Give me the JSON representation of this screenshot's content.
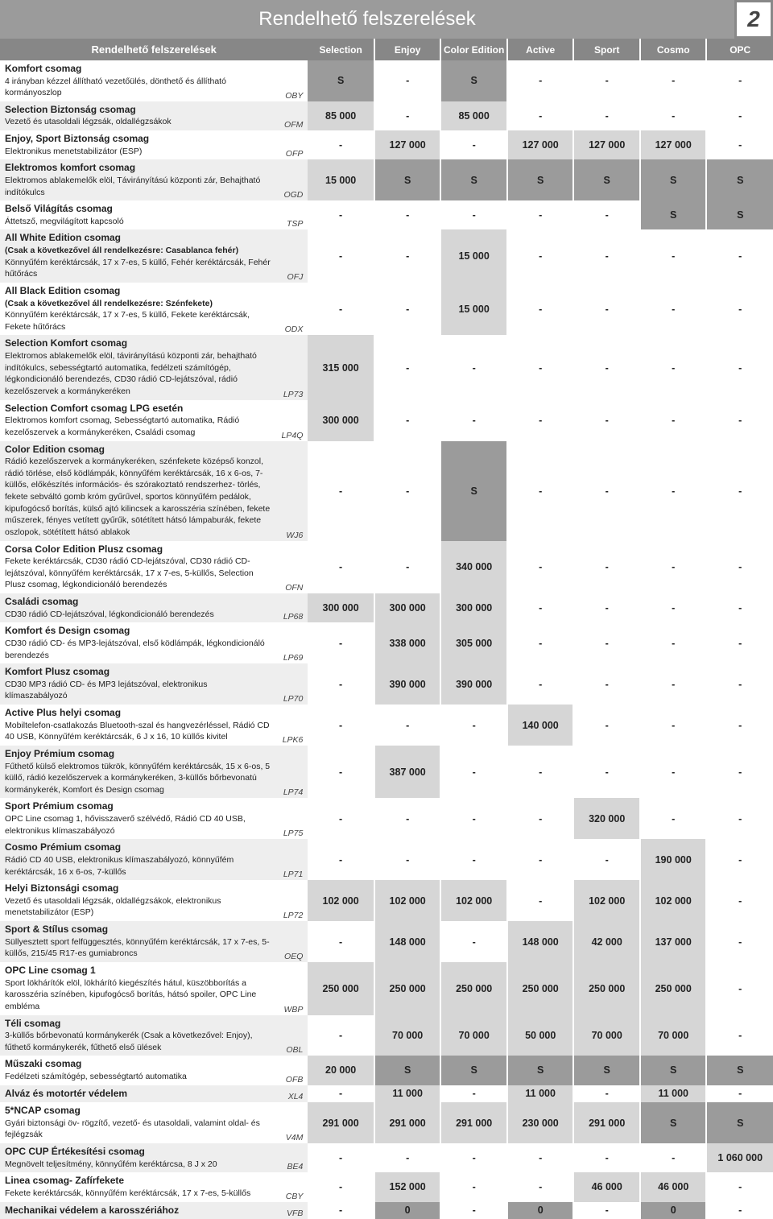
{
  "header": {
    "title": "Rendelhető felszerelések",
    "page_number": "2"
  },
  "columns": [
    "Selection",
    "Enjoy",
    "Color Edition",
    "Active",
    "Sport",
    "Cosmo",
    "OPC"
  ],
  "table_header": "Rendelhető felszerelések",
  "rows": [
    {
      "title": "Komfort csomag",
      "desc": "4 irányban kézzel állítható vezetőülés, dönthető és állítható kormányoszlop",
      "code": "OBY",
      "cells": [
        {
          "t": "S",
          "c": "dark"
        },
        {
          "t": "-",
          "c": "white"
        },
        {
          "t": "S",
          "c": "dark"
        },
        {
          "t": "-",
          "c": "white"
        },
        {
          "t": "-",
          "c": "white"
        },
        {
          "t": "-",
          "c": "white"
        },
        {
          "t": "-",
          "c": "white"
        }
      ]
    },
    {
      "title": "Selection Biztonság csomag",
      "desc": "Vezető és utasoldali légzsák, oldallégzsákok",
      "code": "OFM",
      "cells": [
        {
          "t": "85 000",
          "c": "light"
        },
        {
          "t": "-",
          "c": "white"
        },
        {
          "t": "85 000",
          "c": "light"
        },
        {
          "t": "-",
          "c": "white"
        },
        {
          "t": "-",
          "c": "white"
        },
        {
          "t": "-",
          "c": "white"
        },
        {
          "t": "-",
          "c": "white"
        }
      ]
    },
    {
      "title": "Enjoy, Sport Biztonság csomag",
      "desc": "Elektronikus menetstabilizátor (ESP)",
      "code": "OFP",
      "cells": [
        {
          "t": "-",
          "c": "white"
        },
        {
          "t": "127 000",
          "c": "light"
        },
        {
          "t": "-",
          "c": "white"
        },
        {
          "t": "127 000",
          "c": "light"
        },
        {
          "t": "127 000",
          "c": "light"
        },
        {
          "t": "127 000",
          "c": "light"
        },
        {
          "t": "-",
          "c": "white"
        }
      ]
    },
    {
      "title": "Elektromos komfort csomag",
      "desc": "Elektromos ablakemelők elöl, Távirányítású központi zár, Behajtható indítókulcs",
      "code": "OGD",
      "cells": [
        {
          "t": "15 000",
          "c": "light"
        },
        {
          "t": "S",
          "c": "dark"
        },
        {
          "t": "S",
          "c": "dark"
        },
        {
          "t": "S",
          "c": "dark"
        },
        {
          "t": "S",
          "c": "dark"
        },
        {
          "t": "S",
          "c": "dark"
        },
        {
          "t": "S",
          "c": "dark"
        }
      ]
    },
    {
      "title": "Belső Világítás csomag",
      "desc": "Áttetsző, megvilágított kapcsoló",
      "code": "TSP",
      "cells": [
        {
          "t": "-",
          "c": "white"
        },
        {
          "t": "-",
          "c": "white"
        },
        {
          "t": "-",
          "c": "white"
        },
        {
          "t": "-",
          "c": "white"
        },
        {
          "t": "-",
          "c": "white"
        },
        {
          "t": "S",
          "c": "dark"
        },
        {
          "t": "S",
          "c": "dark"
        }
      ]
    },
    {
      "title": "All White Edition csomag",
      "desc": "<b>(Csak a következővel áll rendelkezésre: Casablanca fehér)</b><br>Könnyűfém keréktárcsák, 17 x 7-es, 5 küllő, Fehér keréktárcsák, Fehér hűtőrács",
      "code": "OFJ",
      "cells": [
        {
          "t": "-",
          "c": "white"
        },
        {
          "t": "-",
          "c": "white"
        },
        {
          "t": "15 000",
          "c": "light"
        },
        {
          "t": "-",
          "c": "white"
        },
        {
          "t": "-",
          "c": "white"
        },
        {
          "t": "-",
          "c": "white"
        },
        {
          "t": "-",
          "c": "white"
        }
      ]
    },
    {
      "title": "All Black Edition csomag",
      "desc": "<b>(Csak a következővel áll rendelkezésre: Szénfekete)</b><br>Könnyűfém keréktárcsák, 17 x 7-es, 5 küllő, Fekete keréktárcsák, Fekete hűtőrács",
      "code": "ODX",
      "cells": [
        {
          "t": "-",
          "c": "white"
        },
        {
          "t": "-",
          "c": "white"
        },
        {
          "t": "15 000",
          "c": "light"
        },
        {
          "t": "-",
          "c": "white"
        },
        {
          "t": "-",
          "c": "white"
        },
        {
          "t": "-",
          "c": "white"
        },
        {
          "t": "-",
          "c": "white"
        }
      ]
    },
    {
      "title": "Selection Komfort csomag",
      "desc": "Elektromos ablakemelők elöl, távirányítású központi zár, behajtható indítókulcs, sebességtartó automatika, fedélzeti számítógép, légkondicionáló berendezés, CD30 rádió CD-lejátszóval, rádió kezelőszervek a kormánykeréken",
      "code": "LP73",
      "cells": [
        {
          "t": "315 000",
          "c": "light"
        },
        {
          "t": "-",
          "c": "white"
        },
        {
          "t": "-",
          "c": "white"
        },
        {
          "t": "-",
          "c": "white"
        },
        {
          "t": "-",
          "c": "white"
        },
        {
          "t": "-",
          "c": "white"
        },
        {
          "t": "-",
          "c": "white"
        }
      ]
    },
    {
      "title": "Selection Comfort csomag LPG esetén",
      "desc": "Elektromos komfort csomag, Sebességtartó automatika, Rádió kezelőszervek a kormánykeréken, Családi csomag",
      "code": "LP4Q",
      "cells": [
        {
          "t": "300 000",
          "c": "light"
        },
        {
          "t": "-",
          "c": "white"
        },
        {
          "t": "-",
          "c": "white"
        },
        {
          "t": "-",
          "c": "white"
        },
        {
          "t": "-",
          "c": "white"
        },
        {
          "t": "-",
          "c": "white"
        },
        {
          "t": "-",
          "c": "white"
        }
      ]
    },
    {
      "title": "Color Edition csomag",
      "desc": "Rádió kezelőszervek a kormánykeréken, szénfekete középső konzol, rádió törlése, első ködlámpák, könnyűfém keréktárcsák, 16 x 6-os, 7-küllős, előkészítés információs- és szórakoztató rendszerhez- törlés, fekete sebváltó gomb króm gyűrűvel, sportos könnyűfém pedálok, kipufogócső borítás, külső ajtó kilincsek a karosszéria színében, fekete műszerek, fényes vetített gyűrűk, sötétített hátsó lámpaburák, fekete oszlopok, sötétített hátsó ablakok",
      "code": "WJ6",
      "cells": [
        {
          "t": "-",
          "c": "white"
        },
        {
          "t": "-",
          "c": "white"
        },
        {
          "t": "S",
          "c": "dark"
        },
        {
          "t": "-",
          "c": "white"
        },
        {
          "t": "-",
          "c": "white"
        },
        {
          "t": "-",
          "c": "white"
        },
        {
          "t": "-",
          "c": "white"
        }
      ]
    },
    {
      "title": "Corsa Color Edition Plusz csomag",
      "desc": "Fekete keréktárcsák, CD30 rádió CD-lejátszóval, CD30 rádió CD-lejátszóval, könnyűfém keréktárcsák, 17 x 7-es, 5-küllős, Selection Plusz csomag, légkondicionáló berendezés",
      "code": "OFN",
      "cells": [
        {
          "t": "-",
          "c": "white"
        },
        {
          "t": "-",
          "c": "white"
        },
        {
          "t": "340 000",
          "c": "light"
        },
        {
          "t": "-",
          "c": "white"
        },
        {
          "t": "-",
          "c": "white"
        },
        {
          "t": "-",
          "c": "white"
        },
        {
          "t": "-",
          "c": "white"
        }
      ]
    },
    {
      "title": "Családi csomag",
      "desc": "CD30 rádió CD-lejátszóval, légkondicionáló berendezés",
      "code": "LP68",
      "cells": [
        {
          "t": "300 000",
          "c": "light"
        },
        {
          "t": "300 000",
          "c": "light"
        },
        {
          "t": "300 000",
          "c": "light"
        },
        {
          "t": "-",
          "c": "white"
        },
        {
          "t": "-",
          "c": "white"
        },
        {
          "t": "-",
          "c": "white"
        },
        {
          "t": "-",
          "c": "white"
        }
      ]
    },
    {
      "title": "Komfort és Design csomag",
      "desc": "CD30 rádió CD- és MP3-lejátszóval, első ködlámpák, légkondicionáló berendezés",
      "code": "LP69",
      "cells": [
        {
          "t": "-",
          "c": "white"
        },
        {
          "t": "338 000",
          "c": "light"
        },
        {
          "t": "305 000",
          "c": "light"
        },
        {
          "t": "-",
          "c": "white"
        },
        {
          "t": "-",
          "c": "white"
        },
        {
          "t": "-",
          "c": "white"
        },
        {
          "t": "-",
          "c": "white"
        }
      ]
    },
    {
      "title": "Komfort Plusz csomag",
      "desc": "CD30 MP3 rádió CD- és MP3 lejátszóval, elektronikus klímaszabályozó",
      "code": "LP70",
      "cells": [
        {
          "t": "-",
          "c": "white"
        },
        {
          "t": "390 000",
          "c": "light"
        },
        {
          "t": "390 000",
          "c": "light"
        },
        {
          "t": "-",
          "c": "white"
        },
        {
          "t": "-",
          "c": "white"
        },
        {
          "t": "-",
          "c": "white"
        },
        {
          "t": "-",
          "c": "white"
        }
      ]
    },
    {
      "title": "Active Plus helyi csomag",
      "desc": "Mobiltelefon-csatlakozás Bluetooth-szal és hangvezérléssel, Rádió CD 40 USB, Könnyűfém keréktárcsák, 6 J x 16, 10 küllős kivitel",
      "code": "LPK6",
      "cells": [
        {
          "t": "-",
          "c": "white"
        },
        {
          "t": "-",
          "c": "white"
        },
        {
          "t": "-",
          "c": "white"
        },
        {
          "t": "140 000",
          "c": "light"
        },
        {
          "t": "-",
          "c": "white"
        },
        {
          "t": "-",
          "c": "white"
        },
        {
          "t": "-",
          "c": "white"
        }
      ]
    },
    {
      "title": "Enjoy Prémium csomag",
      "desc": "Fűthető külső elektromos tükrök, könnyűfém keréktárcsák, 15 x 6-os, 5 küllő, rádió kezelőszervek a kormánykeréken, 3-küllős bőrbevonatú kormánykerék, Komfort és Design csomag",
      "code": "LP74",
      "cells": [
        {
          "t": "-",
          "c": "white"
        },
        {
          "t": "387 000",
          "c": "light"
        },
        {
          "t": "-",
          "c": "white"
        },
        {
          "t": "-",
          "c": "white"
        },
        {
          "t": "-",
          "c": "white"
        },
        {
          "t": "-",
          "c": "white"
        },
        {
          "t": "-",
          "c": "white"
        }
      ]
    },
    {
      "title": "Sport Prémium csomag",
      "desc": "OPC Line csomag 1, hővisszaverő szélvédő, Rádió CD 40 USB, elektronikus klímaszabályozó",
      "code": "LP75",
      "cells": [
        {
          "t": "-",
          "c": "white"
        },
        {
          "t": "-",
          "c": "white"
        },
        {
          "t": "-",
          "c": "white"
        },
        {
          "t": "-",
          "c": "white"
        },
        {
          "t": "320 000",
          "c": "light"
        },
        {
          "t": "-",
          "c": "white"
        },
        {
          "t": "-",
          "c": "white"
        }
      ]
    },
    {
      "title": "Cosmo Prémium csomag",
      "desc": "Rádió CD 40 USB, elektronikus klímaszabályozó, könnyűfém keréktárcsák, 16 x 6-os, 7-küllős",
      "code": "LP71",
      "cells": [
        {
          "t": "-",
          "c": "white"
        },
        {
          "t": "-",
          "c": "white"
        },
        {
          "t": "-",
          "c": "white"
        },
        {
          "t": "-",
          "c": "white"
        },
        {
          "t": "-",
          "c": "white"
        },
        {
          "t": "190 000",
          "c": "light"
        },
        {
          "t": "-",
          "c": "white"
        }
      ]
    },
    {
      "title": "Helyi Biztonsági csomag",
      "desc": "Vezető és utasoldali légzsák, oldallégzsákok, elektronikus menetstabilizátor (ESP)",
      "code": "LP72",
      "cells": [
        {
          "t": "102 000",
          "c": "light"
        },
        {
          "t": "102 000",
          "c": "light"
        },
        {
          "t": "102 000",
          "c": "light"
        },
        {
          "t": "-",
          "c": "white"
        },
        {
          "t": "102 000",
          "c": "light"
        },
        {
          "t": "102 000",
          "c": "light"
        },
        {
          "t": "-",
          "c": "white"
        }
      ]
    },
    {
      "title": "Sport & Stílus csomag",
      "desc": "Süllyesztett sport felfüggesztés, könnyűfém keréktárcsák, 17 x 7-es, 5-küllős, 215/45 R17-es gumiabroncs",
      "code": "OEQ",
      "cells": [
        {
          "t": "-",
          "c": "white"
        },
        {
          "t": "148 000",
          "c": "light"
        },
        {
          "t": "-",
          "c": "white"
        },
        {
          "t": "148 000",
          "c": "light"
        },
        {
          "t": "42 000",
          "c": "light"
        },
        {
          "t": "137 000",
          "c": "light"
        },
        {
          "t": "-",
          "c": "white"
        }
      ]
    },
    {
      "title": "OPC Line csomag 1",
      "desc": "Sport lökhárítók elöl, lökhárító kiegészítés hátul, küszöbborítás a karosszéria színében, kipufogócső borítás, hátsó spoiler, OPC Line embléma",
      "code": "WBP",
      "cells": [
        {
          "t": "250 000",
          "c": "light"
        },
        {
          "t": "250 000",
          "c": "light"
        },
        {
          "t": "250 000",
          "c": "light"
        },
        {
          "t": "250 000",
          "c": "light"
        },
        {
          "t": "250 000",
          "c": "light"
        },
        {
          "t": "250 000",
          "c": "light"
        },
        {
          "t": "-",
          "c": "white"
        }
      ]
    },
    {
      "title": "Téli csomag",
      "desc": "3-küllős bőrbevonatú kormánykerék (Csak a következővel: Enjoy), fűthető kormánykerék, fűthető első ülések",
      "code": "OBL",
      "cells": [
        {
          "t": "-",
          "c": "white"
        },
        {
          "t": "70 000",
          "c": "light"
        },
        {
          "t": "70 000",
          "c": "light"
        },
        {
          "t": "50 000",
          "c": "light"
        },
        {
          "t": "70 000",
          "c": "light"
        },
        {
          "t": "70 000",
          "c": "light"
        },
        {
          "t": "-",
          "c": "white"
        }
      ]
    },
    {
      "title": "Műszaki csomag",
      "desc": "Fedélzeti számítógép, sebességtartó automatika",
      "code": "OFB",
      "cells": [
        {
          "t": "20 000",
          "c": "light"
        },
        {
          "t": "S",
          "c": "dark"
        },
        {
          "t": "S",
          "c": "dark"
        },
        {
          "t": "S",
          "c": "dark"
        },
        {
          "t": "S",
          "c": "dark"
        },
        {
          "t": "S",
          "c": "dark"
        },
        {
          "t": "S",
          "c": "dark"
        }
      ]
    },
    {
      "title": "Alváz és motortér védelem",
      "desc": "",
      "code": "XL4",
      "cells": [
        {
          "t": "-",
          "c": "white"
        },
        {
          "t": "11 000",
          "c": "light"
        },
        {
          "t": "-",
          "c": "white"
        },
        {
          "t": "11 000",
          "c": "light"
        },
        {
          "t": "-",
          "c": "white"
        },
        {
          "t": "11 000",
          "c": "light"
        },
        {
          "t": "-",
          "c": "white"
        }
      ]
    },
    {
      "title": "5*NCAP csomag",
      "desc": "Gyári biztonsági öv- rögzítő, vezető- és utasoldali, valamint oldal- és fejlégzsák",
      "code": "V4M",
      "cells": [
        {
          "t": "291 000",
          "c": "light"
        },
        {
          "t": "291 000",
          "c": "light"
        },
        {
          "t": "291 000",
          "c": "light"
        },
        {
          "t": "230 000",
          "c": "light"
        },
        {
          "t": "291 000",
          "c": "light"
        },
        {
          "t": "S",
          "c": "dark"
        },
        {
          "t": "S",
          "c": "dark"
        }
      ]
    },
    {
      "title": "OPC CUP Értékesítési csomag",
      "desc": "Megnövelt teljesítmény, könnyűfém keréktárcsa, 8 J x 20",
      "code": "BE4",
      "cells": [
        {
          "t": "-",
          "c": "white"
        },
        {
          "t": "-",
          "c": "white"
        },
        {
          "t": "-",
          "c": "white"
        },
        {
          "t": "-",
          "c": "white"
        },
        {
          "t": "-",
          "c": "white"
        },
        {
          "t": "-",
          "c": "white"
        },
        {
          "t": "1 060 000",
          "c": "light"
        }
      ]
    },
    {
      "title": "Linea csomag- Zafírfekete",
      "desc": "Fekete keréktárcsák, könnyűfém keréktárcsák, 17 x 7-es, 5-küllős",
      "code": "CBY",
      "cells": [
        {
          "t": "-",
          "c": "white"
        },
        {
          "t": "152 000",
          "c": "light"
        },
        {
          "t": "-",
          "c": "white"
        },
        {
          "t": "-",
          "c": "white"
        },
        {
          "t": "46 000",
          "c": "light"
        },
        {
          "t": "46 000",
          "c": "light"
        },
        {
          "t": "-",
          "c": "white"
        }
      ]
    },
    {
      "title": "Mechanikai védelem a karosszériához",
      "desc": "",
      "code": "VFB",
      "cells": [
        {
          "t": "-",
          "c": "white"
        },
        {
          "t": "0",
          "c": "dark"
        },
        {
          "t": "-",
          "c": "white"
        },
        {
          "t": "0",
          "c": "dark"
        },
        {
          "t": "-",
          "c": "white"
        },
        {
          "t": "0",
          "c": "dark"
        },
        {
          "t": "-",
          "c": "white"
        }
      ]
    }
  ]
}
